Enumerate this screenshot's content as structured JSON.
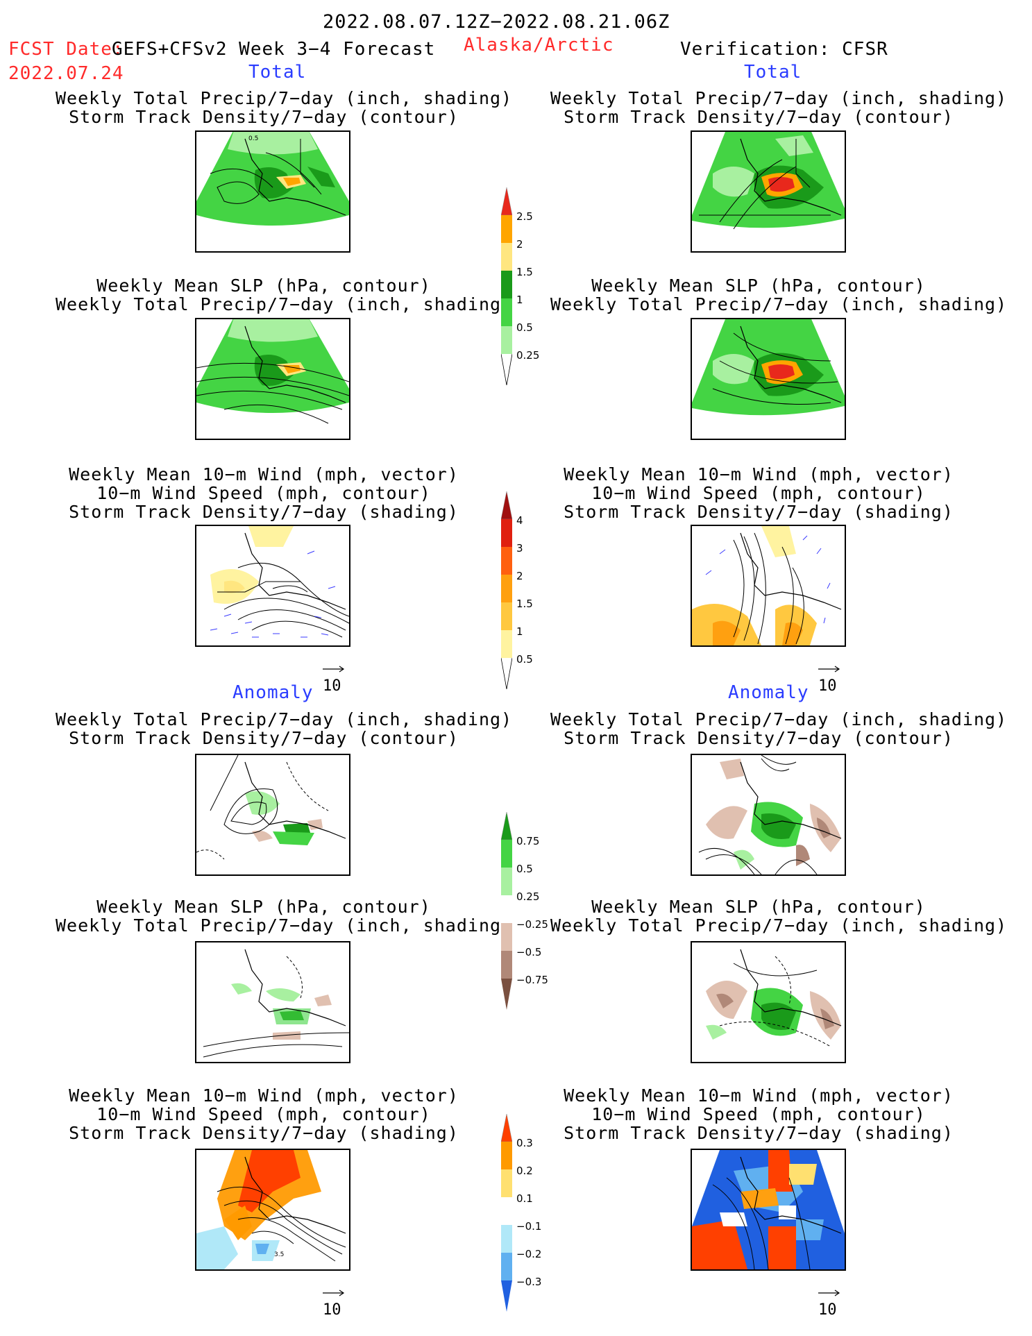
{
  "header": {
    "date_range": "2022.08.07.12Z−2022.08.21.06Z",
    "fcst_date_label": "FCST Date:",
    "model": "GEFS+CFSv2 Week 3−4 Forecast",
    "region": "Alaska/Arctic",
    "verification": "Verification: CFSR",
    "fcst_date": "2022.07.24"
  },
  "sections": {
    "total_left": "Total",
    "total_right": "Total",
    "anomaly_left": "Anomaly",
    "anomaly_right": "Anomaly"
  },
  "titles": {
    "precip_storm": [
      "Weekly Total Precip/7−day (inch, shading)",
      "Storm Track Density/7−day (contour)"
    ],
    "slp_precip": [
      "Weekly Mean SLP (hPa, contour)",
      "Weekly Total Precip/7−day (inch, shading)"
    ],
    "wind": [
      "Weekly Mean 10−m Wind (mph, vector)",
      "10−m Wind Speed (mph, contour)",
      "Storm Track Density/7−day (shading)"
    ]
  },
  "maps": {
    "contour_label_p1": "0.5",
    "contour_label_p11": "3.5"
  },
  "vector_ref": "10",
  "colorbars": {
    "precip_total": {
      "labels": [
        "2.5",
        "2",
        "1.5",
        "1",
        "0.5",
        "0.25"
      ],
      "colors": [
        "#e8281c",
        "#ffa500",
        "#ffe680",
        "#1a9a1a",
        "#44d444",
        "#a8f0a0"
      ]
    },
    "storm_total": {
      "labels": [
        "4",
        "3",
        "2",
        "1.5",
        "1",
        "0.5"
      ],
      "colors": [
        "#a01010",
        "#e02010",
        "#ff6010",
        "#ffa010",
        "#ffc840",
        "#fff3a0"
      ]
    },
    "precip_anom": {
      "labels": [
        "0.75",
        "0.5",
        "0.25",
        "−0.25",
        "−0.5",
        "−0.75"
      ],
      "colors": [
        "#1a9a1a",
        "#44d444",
        "#a8f0a0",
        "#ffffff",
        "#e0c0b0",
        "#b08878",
        "#7a5040"
      ]
    },
    "storm_anom": {
      "labels": [
        "0.3",
        "0.2",
        "0.1",
        "−0.1",
        "−0.2",
        "−0.3"
      ],
      "colors": [
        "#ff4000",
        "#ff9a00",
        "#ffe070",
        "#ffffff",
        "#b0e8f8",
        "#60b0f0",
        "#2060e0"
      ]
    }
  },
  "colors": {
    "label_red": "#ff2a2a",
    "label_blue": "#2a3cff"
  }
}
